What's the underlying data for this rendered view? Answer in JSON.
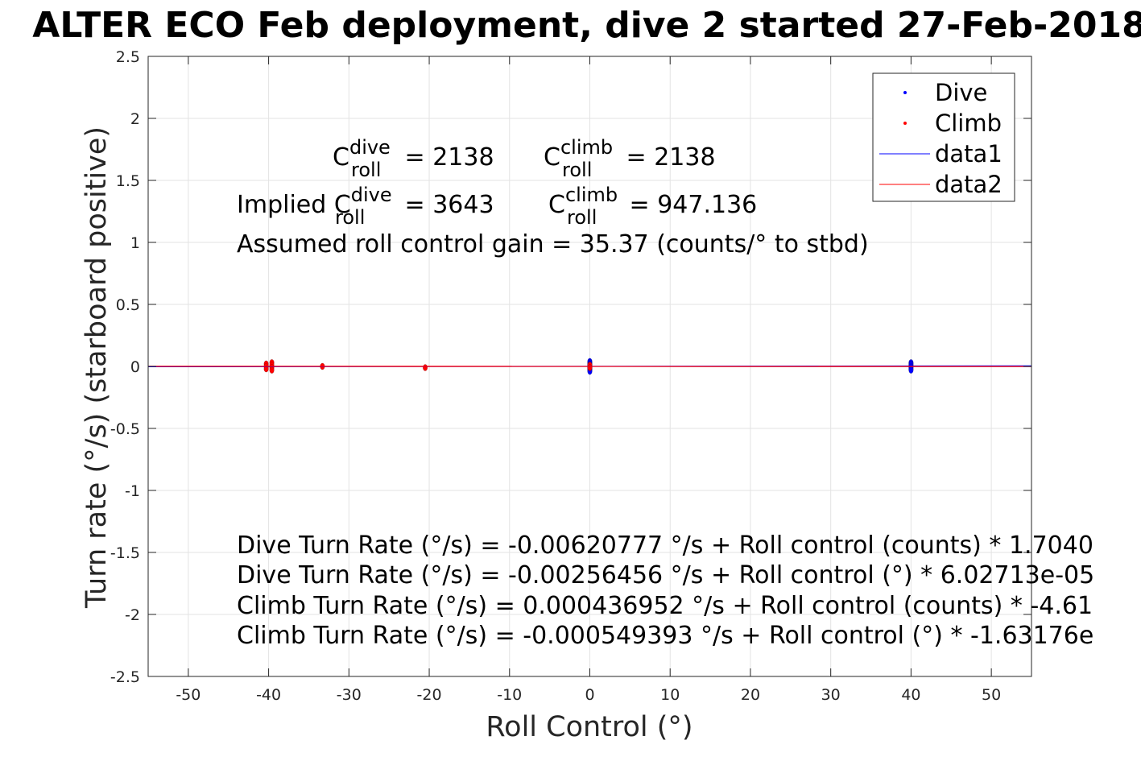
{
  "chart_data": {
    "type": "scatter",
    "title": "ALTER ECO Feb deployment, dive 2 started 27-Feb-2018",
    "xlabel": "Roll Control (°)",
    "ylabel": "Turn rate (°/s) (starboard positive)",
    "xlim": [
      -55,
      55
    ],
    "ylim": [
      -2.5,
      2.5
    ],
    "xticks": [
      -50,
      -40,
      -30,
      -20,
      -10,
      0,
      10,
      20,
      30,
      40,
      50
    ],
    "yticks": [
      -2.5,
      -2,
      -1.5,
      -1,
      -0.5,
      0,
      0.5,
      1,
      1.5,
      2,
      2.5
    ],
    "ytick_labels": [
      "-2.5",
      "-2",
      "-1.5",
      "-1",
      "-0.5",
      "0",
      "0.5",
      "1",
      "1.5",
      "2",
      "2.5"
    ],
    "grid": true,
    "legend_position": "top-right",
    "series": [
      {
        "name": "Dive",
        "kind": "points",
        "color": "#0000ff",
        "points": [
          [
            0,
            0.04
          ],
          [
            0,
            0.03
          ],
          [
            0,
            0.02
          ],
          [
            0,
            0.01
          ],
          [
            0,
            0.0
          ],
          [
            0,
            -0.01
          ],
          [
            0,
            -0.02
          ],
          [
            0,
            -0.03
          ],
          [
            0,
            -0.04
          ],
          [
            40,
            0.03
          ],
          [
            40,
            0.02
          ],
          [
            40,
            0.01
          ],
          [
            40,
            0.0
          ],
          [
            40,
            -0.01
          ],
          [
            40,
            -0.02
          ],
          [
            40,
            -0.03
          ]
        ]
      },
      {
        "name": "Climb",
        "kind": "points",
        "color": "#ff0000",
        "points": [
          [
            -40.3,
            0.02
          ],
          [
            -40.3,
            0.0
          ],
          [
            -40.3,
            -0.02
          ],
          [
            -39.6,
            0.03
          ],
          [
            -39.6,
            0.01
          ],
          [
            -39.6,
            -0.01
          ],
          [
            -39.6,
            -0.03
          ],
          [
            -33.3,
            0.0
          ],
          [
            -20.5,
            -0.01
          ],
          [
            0,
            0.01
          ],
          [
            0,
            -0.01
          ]
        ]
      },
      {
        "name": "data1",
        "kind": "line",
        "color": "#0000ff",
        "x": [
          -55,
          55
        ],
        "y": [
          -0.0026,
          0.004
        ]
      },
      {
        "name": "data2",
        "kind": "line",
        "color": "#ff0000",
        "x": [
          -55,
          55
        ],
        "y": [
          0.0009,
          -0.0009
        ]
      }
    ],
    "annotations": {
      "dive_c_roll": {
        "prefix": "C",
        "sup": "dive",
        "sub": "roll",
        "suffix": " = 2138"
      },
      "climb_c_roll": {
        "prefix": "C",
        "sup": "climb",
        "sub": "roll",
        "suffix": " = 2138"
      },
      "implied_dive": {
        "prefix": "Implied C",
        "sup": "dive",
        "sub": "roll",
        "suffix": " = 3643"
      },
      "implied_climb": {
        "prefix": "C",
        "sup": "climb",
        "sub": "roll",
        "suffix": " = 947.136"
      },
      "gain": "Assumed roll control gain = 35.37 (counts/° to stbd)",
      "equations": [
        "Dive Turn Rate (°/s) = -0.00620777 °/s + Roll control (counts) * 1.7040",
        "Dive Turn Rate (°/s) = -0.00256456 °/s + Roll control (°) * 6.02713e-05",
        "Climb Turn Rate (°/s) = 0.000436952 °/s + Roll control (counts) * -4.61",
        "Climb Turn Rate (°/s) = -0.000549393 °/s + Roll control (°) * -1.63176e"
      ]
    }
  }
}
